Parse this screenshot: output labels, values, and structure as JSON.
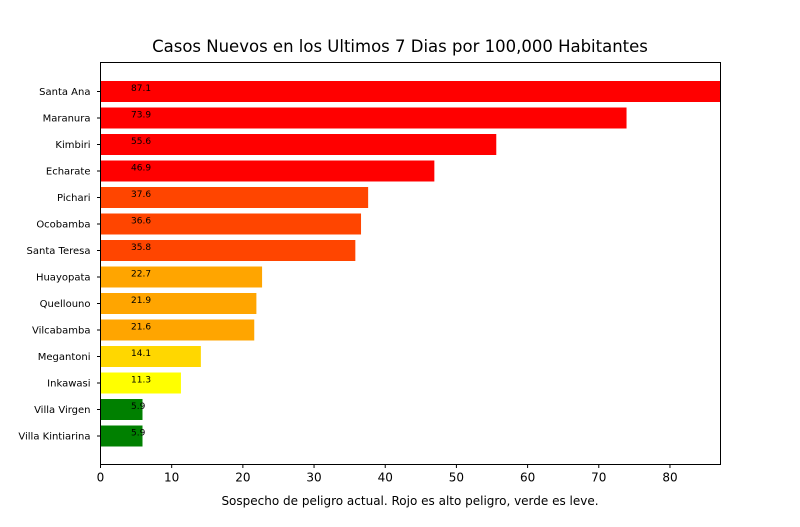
{
  "chart_data": {
    "type": "bar",
    "orientation": "horizontal",
    "title": "Casos Nuevos en los Ultimos 7 Dias por 100,000 Habitantes",
    "xlabel": "Sospecho de peligro actual. Rojo es alto peligro, verde es leve.",
    "ylabel": "",
    "xlim": [
      0,
      87.1
    ],
    "xticks": [
      0,
      10,
      20,
      30,
      40,
      50,
      60,
      70,
      80
    ],
    "grid": false,
    "categories": [
      "Santa Ana",
      "Maranura",
      "Kimbiri",
      "Echarate",
      "Pichari",
      "Ocobamba",
      "Santa Teresa",
      "Huayopata",
      "Quellouno",
      "Vilcabamba",
      "Megantoni",
      "Inkawasi",
      "Villa Virgen",
      "Villa Kintiarina"
    ],
    "values": [
      87.1,
      73.9,
      55.6,
      46.9,
      37.6,
      36.6,
      35.8,
      22.7,
      21.9,
      21.6,
      14.1,
      11.3,
      5.9,
      5.9
    ],
    "labels": [
      "87.1",
      "73.9",
      "55.6",
      "46.9",
      "37.6",
      "36.6",
      "35.8",
      "22.7",
      "21.9",
      "21.6",
      "14.1",
      "11.3",
      "5.9",
      "5.9"
    ],
    "colors": [
      "#ff0000",
      "#ff0000",
      "#ff0000",
      "#ff0000",
      "#ff4500",
      "#ff4500",
      "#ff4500",
      "#ffa500",
      "#ffa500",
      "#ffa500",
      "#ffd700",
      "#ffff00",
      "#008000",
      "#008000"
    ]
  }
}
